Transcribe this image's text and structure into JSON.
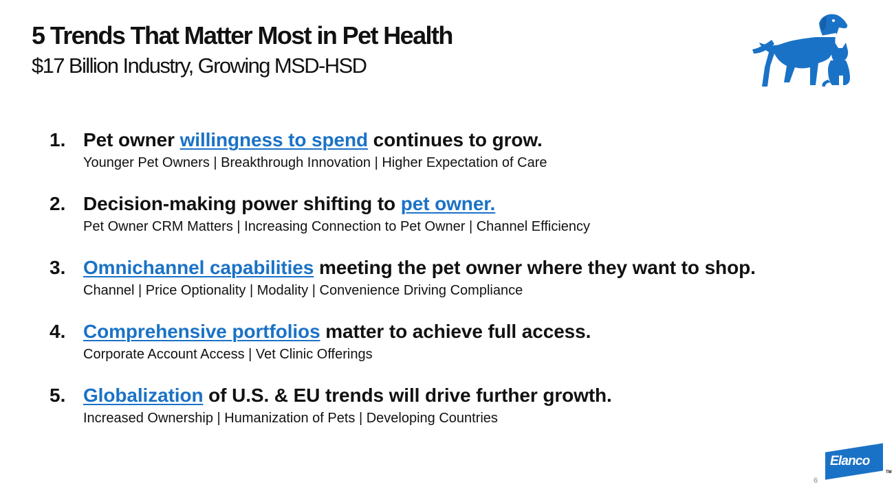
{
  "slide": {
    "title": "5 Trends That Matter Most in Pet Health",
    "subtitle": "$17 Billion Industry, Growing MSD-HSD",
    "accent_color": "#1a72c6",
    "page_number": "6"
  },
  "logos": {
    "pet_icon": "dog-and-cat-icon",
    "brand": {
      "text": "Elanco",
      "trademark": "TM",
      "color": "#1a72c6"
    }
  },
  "trends": [
    {
      "number": "1.",
      "before": "Pet owner ",
      "highlight": "willingness to spend",
      "after": " continues to grow.",
      "sub": "Younger Pet Owners | Breakthrough Innovation | Higher Expectation of Care"
    },
    {
      "number": "2.",
      "before": "Decision-making power shifting to ",
      "highlight": "pet owner.",
      "after": "",
      "sub": "Pet Owner CRM Matters | Increasing Connection to Pet Owner | Channel Efficiency"
    },
    {
      "number": "3.",
      "before": "",
      "highlight": "Omnichannel capabilities",
      "after": " meeting the pet owner where they want to shop.",
      "sub": "Channel | Price Optionality | Modality | Convenience Driving Compliance"
    },
    {
      "number": "4.",
      "before": "",
      "highlight": "Comprehensive portfolios",
      "after": " matter to achieve full access.",
      "sub": "Corporate Account Access | Vet Clinic Offerings"
    },
    {
      "number": "5.",
      "before": "",
      "highlight": "Globalization",
      "after": " of U.S. & EU trends will drive further growth.",
      "sub": "Increased Ownership | Humanization of Pets | Developing Countries"
    }
  ]
}
